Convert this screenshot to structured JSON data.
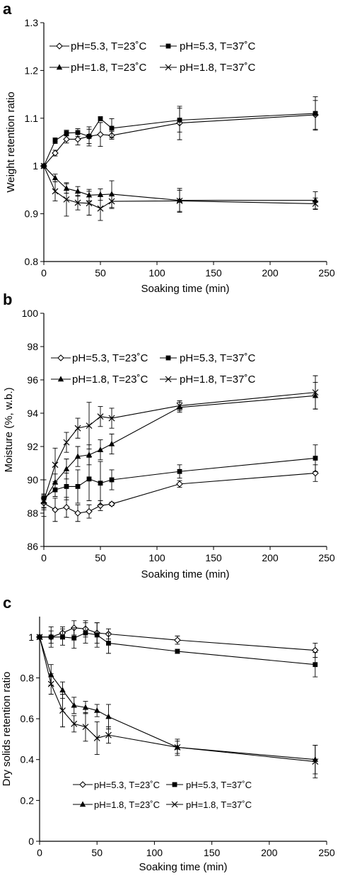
{
  "figure": {
    "background": "#ffffff"
  },
  "chart_data": [
    {
      "type": "line",
      "panel": "a",
      "xlabel": "Soaking time (min)",
      "ylabel": "Weight retention ratio",
      "xlim": [
        0,
        250
      ],
      "ylim": [
        0.8,
        1.3
      ],
      "xticks": [
        0,
        50,
        100,
        150,
        200,
        250
      ],
      "yticks": [
        0.8,
        0.9,
        1,
        1.1,
        1.2,
        1.3
      ],
      "ytick_labels": [
        "0.8",
        "0.9",
        "1",
        "1.1",
        "1.2",
        "1.3"
      ],
      "grid": false,
      "legend_position": "top",
      "series": [
        {
          "name": "pH=5.3, T=23˚C",
          "marker": "diamond-open",
          "x": [
            0,
            10,
            20,
            30,
            40,
            50,
            60,
            120,
            240
          ],
          "y": [
            1.0,
            1.027,
            1.056,
            1.056,
            1.062,
            1.066,
            1.064,
            1.09,
            1.107
          ],
          "err": [
            0.004,
            0.006,
            0.008,
            0.012,
            0.02,
            0.025,
            0.008,
            0.035,
            0.03
          ]
        },
        {
          "name": "pH=5.3, T=37˚C",
          "marker": "square-filled",
          "x": [
            0,
            10,
            20,
            30,
            40,
            50,
            60,
            120,
            240
          ],
          "y": [
            1.0,
            1.053,
            1.069,
            1.07,
            1.062,
            1.099,
            1.079,
            1.096,
            1.11
          ],
          "err": [
            0.004,
            0.006,
            0.006,
            0.008,
            0.015,
            0.004,
            0.02,
            0.025,
            0.035
          ]
        },
        {
          "name": "pH=1.8, T=23˚C",
          "marker": "triangle-filled",
          "x": [
            0,
            10,
            20,
            30,
            40,
            50,
            60,
            120,
            240
          ],
          "y": [
            1.0,
            0.975,
            0.953,
            0.947,
            0.939,
            0.94,
            0.941,
            0.928,
            0.928
          ],
          "err": [
            0.004,
            0.008,
            0.01,
            0.01,
            0.012,
            0.012,
            0.028,
            0.025,
            0.018
          ]
        },
        {
          "name": "pH=1.8, T=37˚C",
          "marker": "x",
          "x": [
            0,
            10,
            20,
            30,
            40,
            50,
            60,
            120,
            240
          ],
          "y": [
            1.0,
            0.947,
            0.93,
            0.923,
            0.922,
            0.911,
            0.926,
            0.927,
            0.921
          ],
          "err": [
            0.004,
            0.02,
            0.035,
            0.015,
            0.025,
            0.025,
            0.015,
            0.022,
            0.012
          ]
        }
      ]
    },
    {
      "type": "line",
      "panel": "b",
      "xlabel": "Soaking time (min)",
      "ylabel": "Moisture (%, w.b.)",
      "xlim": [
        0,
        250
      ],
      "ylim": [
        86,
        100
      ],
      "xticks": [
        0,
        50,
        100,
        150,
        200,
        250
      ],
      "yticks": [
        86,
        88,
        90,
        92,
        94,
        96,
        98,
        100
      ],
      "ytick_labels": [
        "86",
        "88",
        "90",
        "92",
        "94",
        "96",
        "98",
        "100"
      ],
      "grid": false,
      "legend_position": "top",
      "series": [
        {
          "name": "pH=5.3, T=23˚C",
          "marker": "diamond-open",
          "x": [
            0,
            10,
            20,
            30,
            40,
            50,
            60,
            120,
            240
          ],
          "y": [
            88.6,
            88.2,
            88.35,
            88.0,
            88.1,
            88.45,
            88.55,
            89.75,
            90.4
          ],
          "err": [
            0.4,
            0.7,
            0.6,
            0.5,
            0.4,
            0.3,
            0.1,
            0.2,
            0.5
          ]
        },
        {
          "name": "pH=5.3, T=37˚C",
          "marker": "square-filled",
          "x": [
            0,
            10,
            20,
            30,
            40,
            50,
            60,
            120,
            240
          ],
          "y": [
            88.9,
            89.4,
            89.6,
            89.6,
            90.05,
            89.8,
            90.0,
            90.5,
            91.3
          ],
          "err": [
            1.1,
            0.4,
            0.8,
            1.0,
            1.3,
            1.3,
            0.6,
            0.4,
            0.8
          ]
        },
        {
          "name": "pH=1.8, T=23˚C",
          "marker": "triangle-filled",
          "x": [
            0,
            10,
            20,
            30,
            40,
            50,
            60,
            120,
            240
          ],
          "y": [
            88.7,
            89.85,
            90.65,
            91.4,
            91.5,
            91.8,
            92.15,
            94.35,
            95.05
          ],
          "err": [
            0.4,
            0.5,
            0.6,
            0.6,
            0.6,
            0.6,
            0.6,
            0.3,
            0.8
          ]
        },
        {
          "name": "pH=1.8, T=37˚C",
          "marker": "x",
          "x": [
            0,
            10,
            20,
            30,
            40,
            50,
            60,
            120,
            240
          ],
          "y": [
            88.75,
            90.9,
            92.25,
            93.1,
            93.25,
            93.8,
            93.7,
            94.45,
            95.25
          ],
          "err": [
            0.4,
            1.0,
            0.6,
            0.6,
            1.4,
            0.6,
            0.6,
            0.3,
            1.0
          ]
        }
      ]
    },
    {
      "type": "line",
      "panel": "c",
      "xlabel": "Soaking time (min)",
      "ylabel": "Dry solids retention ratio",
      "xlim": [
        0,
        250
      ],
      "ylim": [
        0,
        1.1
      ],
      "xticks": [
        0,
        50,
        100,
        150,
        200,
        250
      ],
      "yticks": [
        0,
        0.2,
        0.4,
        0.6,
        0.8,
        1
      ],
      "ytick_labels": [
        "0",
        "0.2",
        "0.4",
        "0.6",
        "0.8",
        "1"
      ],
      "grid": false,
      "legend_position": "bottom",
      "series": [
        {
          "name": "pH=5.3, T=23˚C",
          "marker": "diamond-open",
          "x": [
            0,
            10,
            20,
            30,
            40,
            50,
            60,
            120,
            240
          ],
          "y": [
            1.0,
            1.0,
            1.02,
            1.045,
            1.04,
            1.02,
            1.015,
            0.985,
            0.935
          ],
          "err": [
            0.005,
            0.03,
            0.03,
            0.035,
            0.04,
            0.05,
            0.025,
            0.02,
            0.035
          ]
        },
        {
          "name": "pH=5.3, T=37˚C",
          "marker": "square-filled",
          "x": [
            0,
            10,
            20,
            30,
            40,
            50,
            60,
            120,
            240
          ],
          "y": [
            1.0,
            1.0,
            1.0,
            0.995,
            1.02,
            1.01,
            0.97,
            0.93,
            0.865
          ],
          "err": [
            0.005,
            0.05,
            0.04,
            0.05,
            0.05,
            0.06,
            0.05,
            0.01,
            0.06
          ]
        },
        {
          "name": "pH=1.8, T=23˚C",
          "marker": "triangle-filled",
          "x": [
            0,
            10,
            20,
            30,
            40,
            50,
            60,
            120,
            240
          ],
          "y": [
            1.0,
            0.815,
            0.74,
            0.665,
            0.655,
            0.64,
            0.61,
            0.46,
            0.4
          ],
          "err": [
            0.005,
            0.05,
            0.04,
            0.04,
            0.03,
            0.03,
            0.06,
            0.04,
            0.07
          ]
        },
        {
          "name": "pH=1.8, T=37˚C",
          "marker": "x",
          "x": [
            0,
            10,
            20,
            30,
            40,
            50,
            60,
            120,
            240
          ],
          "y": [
            1.0,
            0.77,
            0.64,
            0.575,
            0.56,
            0.505,
            0.52,
            0.46,
            0.39
          ],
          "err": [
            0.005,
            0.05,
            0.08,
            0.04,
            0.07,
            0.08,
            0.04,
            0.03,
            0.08
          ]
        }
      ]
    }
  ]
}
